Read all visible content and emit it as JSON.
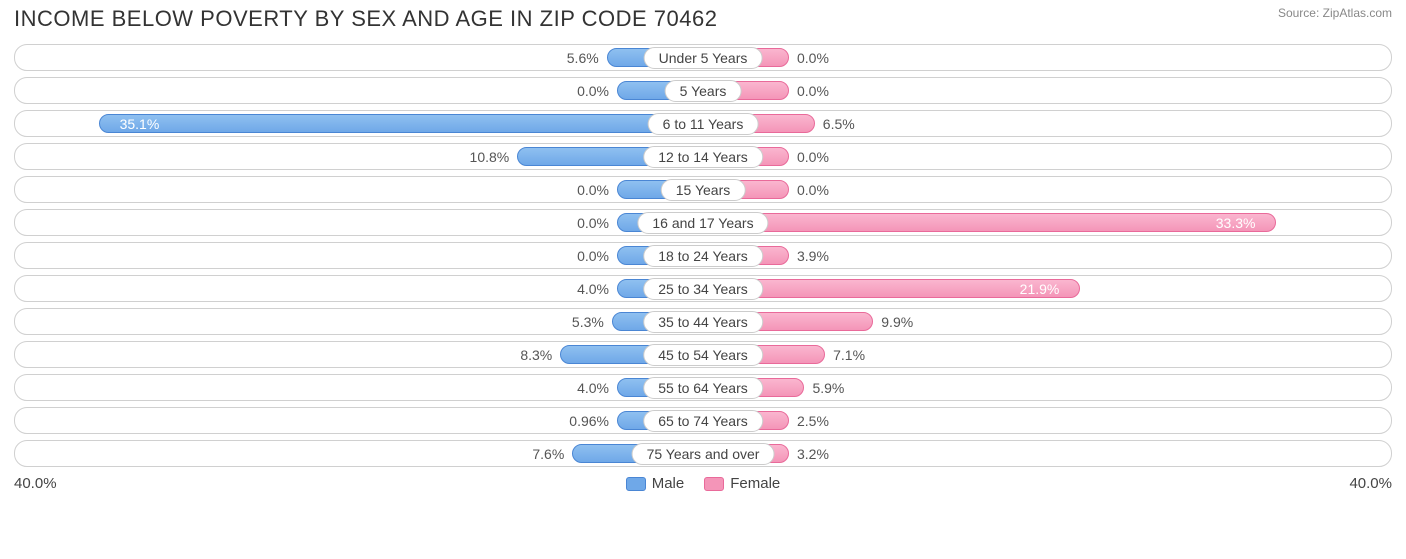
{
  "title": "INCOME BELOW POVERTY BY SEX AND AGE IN ZIP CODE 70462",
  "source": "Source: ZipAtlas.com",
  "axis_max": 40.0,
  "axis_label_left": "40.0%",
  "axis_label_right": "40.0%",
  "min_bar_pct": 5.0,
  "colors": {
    "male_fill": "#6fa8e8",
    "male_stroke": "#4a86d4",
    "female_fill": "#f495b8",
    "female_stroke": "#e96a9a",
    "track_border": "#d0d0d0",
    "text": "#555555",
    "text_in_bar": "#ffffff",
    "background": "#ffffff"
  },
  "legend": {
    "male": "Male",
    "female": "Female"
  },
  "rows": [
    {
      "category": "Under 5 Years",
      "male": 5.6,
      "male_label": "5.6%",
      "female": 0.0,
      "female_label": "0.0%"
    },
    {
      "category": "5 Years",
      "male": 0.0,
      "male_label": "0.0%",
      "female": 0.0,
      "female_label": "0.0%"
    },
    {
      "category": "6 to 11 Years",
      "male": 35.1,
      "male_label": "35.1%",
      "female": 6.5,
      "female_label": "6.5%"
    },
    {
      "category": "12 to 14 Years",
      "male": 10.8,
      "male_label": "10.8%",
      "female": 0.0,
      "female_label": "0.0%"
    },
    {
      "category": "15 Years",
      "male": 0.0,
      "male_label": "0.0%",
      "female": 0.0,
      "female_label": "0.0%"
    },
    {
      "category": "16 and 17 Years",
      "male": 0.0,
      "male_label": "0.0%",
      "female": 33.3,
      "female_label": "33.3%"
    },
    {
      "category": "18 to 24 Years",
      "male": 0.0,
      "male_label": "0.0%",
      "female": 3.9,
      "female_label": "3.9%"
    },
    {
      "category": "25 to 34 Years",
      "male": 4.0,
      "male_label": "4.0%",
      "female": 21.9,
      "female_label": "21.9%"
    },
    {
      "category": "35 to 44 Years",
      "male": 5.3,
      "male_label": "5.3%",
      "female": 9.9,
      "female_label": "9.9%"
    },
    {
      "category": "45 to 54 Years",
      "male": 8.3,
      "male_label": "8.3%",
      "female": 7.1,
      "female_label": "7.1%"
    },
    {
      "category": "55 to 64 Years",
      "male": 4.0,
      "male_label": "4.0%",
      "female": 5.9,
      "female_label": "5.9%"
    },
    {
      "category": "65 to 74 Years",
      "male": 0.96,
      "male_label": "0.96%",
      "female": 2.5,
      "female_label": "2.5%"
    },
    {
      "category": "75 Years and over",
      "male": 7.6,
      "male_label": "7.6%",
      "female": 3.2,
      "female_label": "3.2%"
    }
  ]
}
